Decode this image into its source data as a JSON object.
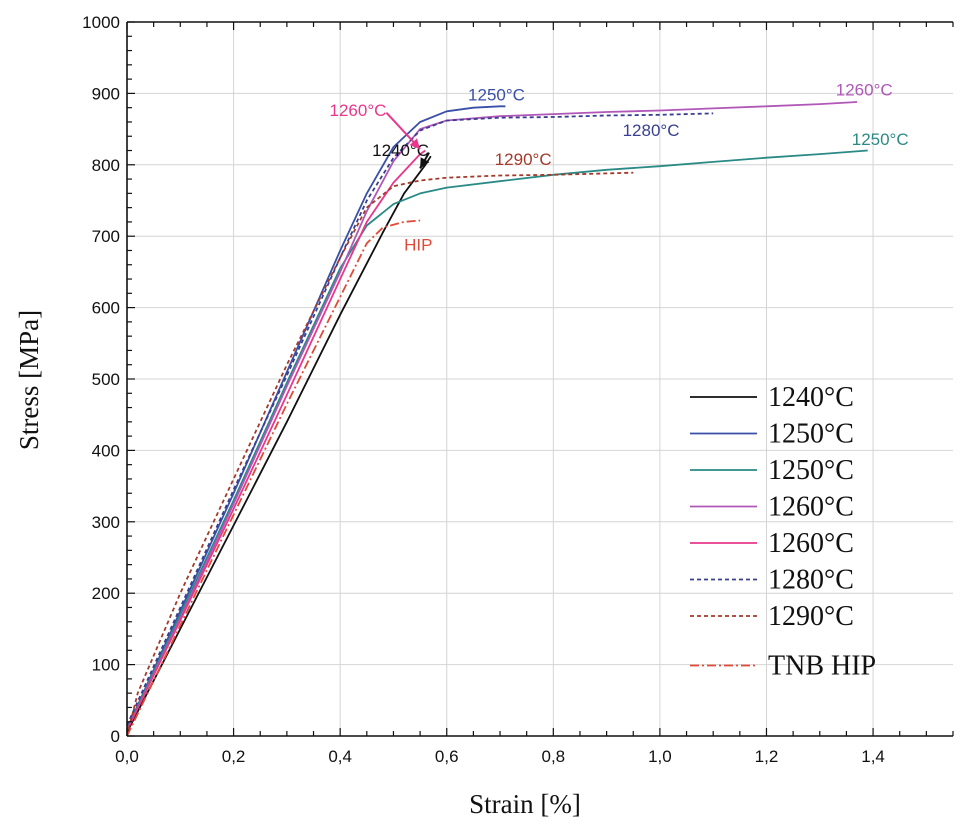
{
  "chart_data": {
    "type": "line",
    "title": "",
    "xlabel": "Strain [%]",
    "ylabel": "Stress [MPa]",
    "xlim": [
      0,
      1.55
    ],
    "ylim": [
      0,
      1000
    ],
    "x_ticks": [
      "0,0",
      "0,2",
      "0,4",
      "0,6",
      "0,8",
      "1,0",
      "1,2",
      "1,4"
    ],
    "y_ticks": [
      "0",
      "100",
      "200",
      "300",
      "400",
      "500",
      "600",
      "700",
      "800",
      "900",
      "1000"
    ],
    "grid": true,
    "legend_position": "bottom-right",
    "series": [
      {
        "name": "1240°C",
        "color": "#111111",
        "dash": "solid",
        "x": [
          0.0,
          0.1,
          0.2,
          0.3,
          0.4,
          0.48,
          0.52,
          0.56,
          0.57
        ],
        "y": [
          5,
          150,
          295,
          440,
          590,
          705,
          760,
          800,
          812
        ]
      },
      {
        "name": "1250°C",
        "color": "#3a4fa8",
        "dash": "solid",
        "x": [
          0.0,
          0.1,
          0.2,
          0.3,
          0.4,
          0.45,
          0.5,
          0.55,
          0.6,
          0.65,
          0.7,
          0.71
        ],
        "y": [
          10,
          175,
          340,
          510,
          680,
          760,
          825,
          860,
          875,
          880,
          882,
          882
        ]
      },
      {
        "name": "1250°C",
        "color": "#2a8a85",
        "dash": "solid",
        "x": [
          0.0,
          0.1,
          0.2,
          0.3,
          0.4,
          0.45,
          0.5,
          0.55,
          0.6,
          0.7,
          0.8,
          0.9,
          1.0,
          1.1,
          1.2,
          1.3,
          1.39
        ],
        "y": [
          10,
          170,
          330,
          495,
          655,
          715,
          745,
          760,
          768,
          777,
          786,
          793,
          798,
          804,
          810,
          815,
          820
        ]
      },
      {
        "name": "1260°C",
        "color": "#b057b8",
        "dash": "solid",
        "x": [
          0.0,
          0.1,
          0.2,
          0.3,
          0.4,
          0.45,
          0.5,
          0.55,
          0.6,
          0.7,
          0.8,
          0.9,
          1.0,
          1.1,
          1.2,
          1.3,
          1.37
        ],
        "y": [
          8,
          165,
          325,
          490,
          650,
          735,
          805,
          850,
          862,
          868,
          871,
          874,
          876,
          879,
          882,
          885,
          888
        ]
      },
      {
        "name": "1260°C",
        "color": "#e8378c",
        "dash": "solid",
        "x": [
          0.0,
          0.1,
          0.2,
          0.3,
          0.4,
          0.45,
          0.5,
          0.55,
          0.56
        ],
        "y": [
          8,
          162,
          318,
          478,
          640,
          720,
          775,
          815,
          820
        ]
      },
      {
        "name": "1280°C",
        "color": "#3a3f8f",
        "dash": "dotted",
        "x": [
          0.0,
          0.1,
          0.2,
          0.3,
          0.4,
          0.45,
          0.5,
          0.55,
          0.6,
          0.7,
          0.8,
          0.9,
          1.0,
          1.1
        ],
        "y": [
          15,
          180,
          345,
          505,
          670,
          750,
          810,
          848,
          862,
          866,
          867,
          869,
          870,
          872
        ]
      },
      {
        "name": "1290°C",
        "color": "#a33a2a",
        "dash": "dotted",
        "x": [
          0.0,
          0.02,
          0.1,
          0.2,
          0.3,
          0.4,
          0.45,
          0.5,
          0.55,
          0.6,
          0.7,
          0.8,
          0.9,
          0.95
        ],
        "y": [
          0,
          60,
          200,
          360,
          520,
          670,
          740,
          770,
          778,
          782,
          785,
          786,
          788,
          789
        ]
      },
      {
        "name": "TNB HIP",
        "color": "#e04a36",
        "dash": "dashdot",
        "x": [
          0.0,
          0.1,
          0.2,
          0.3,
          0.4,
          0.45,
          0.48,
          0.52,
          0.55
        ],
        "y": [
          0,
          155,
          310,
          465,
          615,
          690,
          712,
          720,
          722
        ]
      }
    ],
    "annotations": [
      {
        "text": "1240°C",
        "x": 0.46,
        "y": 812,
        "color": "#111111",
        "arrow_to": [
          0.55,
          795
        ]
      },
      {
        "text": "1260°C",
        "x": 0.38,
        "y": 868,
        "color": "#e8378c",
        "arrow_to": [
          0.55,
          822
        ]
      },
      {
        "text": "1250°C",
        "x": 0.64,
        "y": 890,
        "color": "#3a4fa8"
      },
      {
        "text": "1280°C",
        "x": 0.93,
        "y": 840,
        "color": "#3a3f8f"
      },
      {
        "text": "1290°C",
        "x": 0.69,
        "y": 800,
        "color": "#a33a2a"
      },
      {
        "text": "HIP",
        "x": 0.52,
        "y": 680,
        "color": "#e04a36"
      },
      {
        "text": "1260°C",
        "x": 1.33,
        "y": 897,
        "color": "#b057b8"
      },
      {
        "text": "1250°C",
        "x": 1.36,
        "y": 828,
        "color": "#2a8a85"
      }
    ]
  }
}
